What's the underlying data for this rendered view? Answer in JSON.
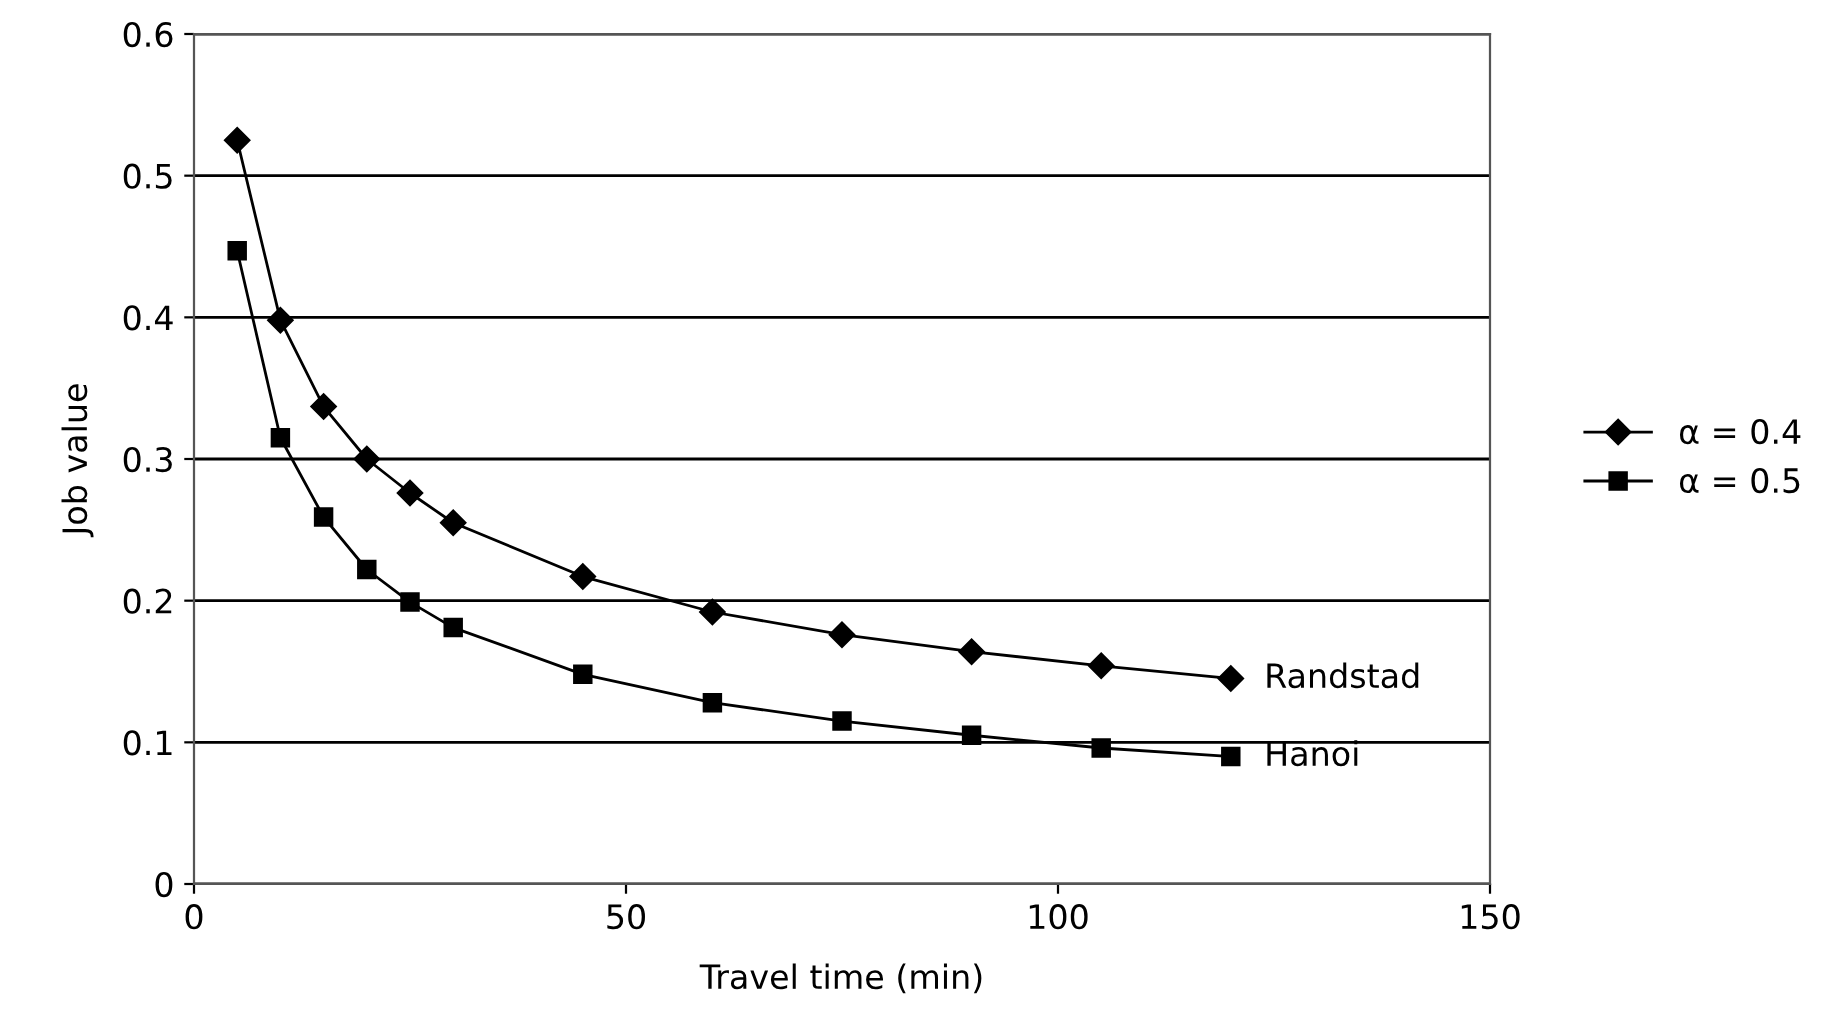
{
  "chart_data": {
    "type": "line",
    "xlabel": "Travel time (min)",
    "ylabel": "Job value",
    "x": [
      5,
      10,
      15,
      20,
      25,
      30,
      45,
      60,
      75,
      90,
      105,
      120
    ],
    "series": [
      {
        "name": "α = 0.4",
        "color": "#000000",
        "marker": "diamond",
        "values": [
          0.525,
          0.398,
          0.337,
          0.3,
          0.276,
          0.255,
          0.217,
          0.192,
          0.176,
          0.164,
          0.154,
          0.145
        ]
      },
      {
        "name": "α = 0.5",
        "color": "#000000",
        "marker": "square",
        "values": [
          0.447,
          0.315,
          0.259,
          0.222,
          0.199,
          0.181,
          0.148,
          0.128,
          0.115,
          0.105,
          0.096,
          0.09
        ]
      }
    ],
    "annotations": [
      {
        "text": "Randstad",
        "x": 120,
        "y": 0.145
      },
      {
        "text": "Hanoi",
        "x": 120,
        "y": 0.09
      }
    ],
    "xlim": [
      0,
      150
    ],
    "xticks": [
      0,
      50,
      100,
      150
    ],
    "ylim": [
      0,
      0.6
    ],
    "yticks": [
      0,
      0.1,
      0.2,
      0.3,
      0.4,
      0.5,
      0.6
    ],
    "grid": "y",
    "legend": "right",
    "line_style": "solid"
  }
}
